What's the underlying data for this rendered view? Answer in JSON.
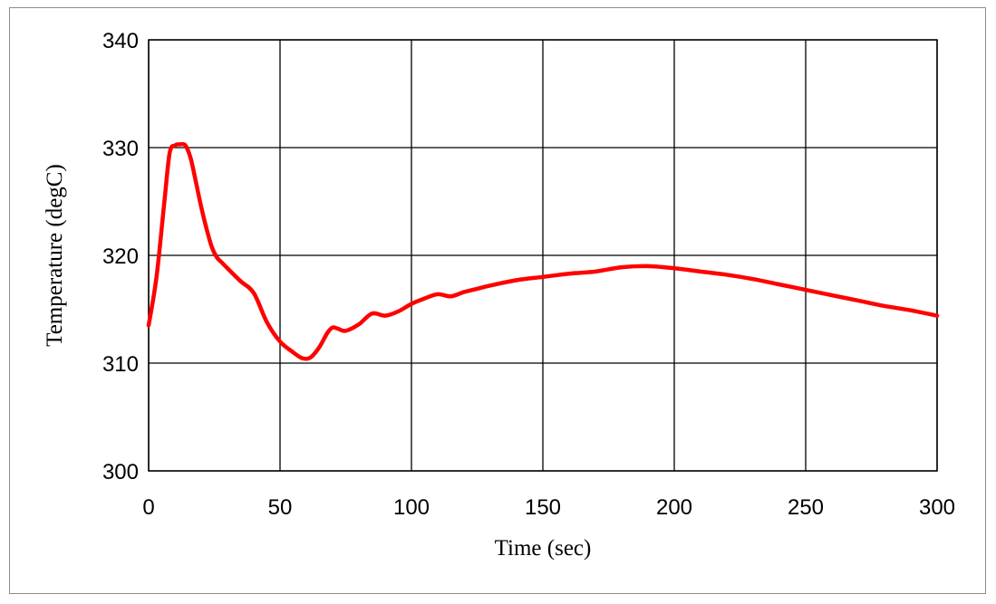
{
  "chart_data": {
    "type": "line",
    "title": "",
    "xlabel": "Time (sec)",
    "ylabel": "Temperature (degC)",
    "xlim": [
      0,
      300
    ],
    "ylim": [
      300,
      340
    ],
    "x_ticks": [
      0,
      50,
      100,
      150,
      200,
      250,
      300
    ],
    "y_ticks": [
      300,
      310,
      320,
      330,
      340
    ],
    "grid": true,
    "legend": "none",
    "colors": {
      "series": "#ff0000",
      "grid": "#000000",
      "frame": "#8c8c8c"
    },
    "series": [
      {
        "x": [
          0,
          3,
          6,
          8,
          10,
          12,
          14,
          16,
          18,
          20,
          22,
          24,
          26,
          28,
          30,
          35,
          40,
          45,
          50,
          55,
          58,
          60,
          62,
          65,
          68,
          70,
          72,
          75,
          80,
          85,
          90,
          95,
          100,
          105,
          110,
          115,
          120,
          125,
          130,
          140,
          150,
          160,
          170,
          180,
          190,
          200,
          210,
          220,
          230,
          240,
          250,
          260,
          270,
          280,
          290,
          300
        ],
        "y": [
          313.5,
          318,
          325,
          329.5,
          330.2,
          330.3,
          330.2,
          329,
          326.8,
          324.5,
          322.5,
          320.8,
          319.8,
          319.3,
          318.8,
          317.6,
          316.5,
          313.8,
          312,
          311,
          310.5,
          310.4,
          310.6,
          311.5,
          312.8,
          313.3,
          313.2,
          313,
          313.6,
          314.6,
          314.4,
          314.8,
          315.5,
          316,
          316.4,
          316.2,
          316.6,
          316.9,
          317.2,
          317.7,
          318,
          318.3,
          318.5,
          318.9,
          319,
          318.8,
          318.5,
          318.2,
          317.8,
          317.3,
          316.8,
          316.3,
          315.8,
          315.3,
          314.9,
          314.4
        ]
      }
    ]
  }
}
